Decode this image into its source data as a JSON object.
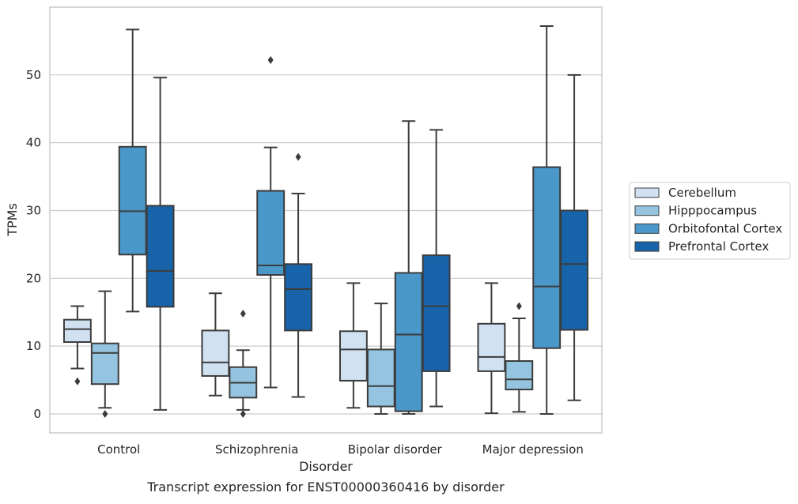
{
  "caption": "Transcript expression for ENST00000360416 by disorder",
  "chart_data": {
    "type": "box",
    "xlabel": "Disorder",
    "ylabel": "TPMs",
    "ylim": [
      -2.8,
      60
    ],
    "y_ticks": [
      0,
      10,
      20,
      30,
      40,
      50
    ],
    "grid": "horizontal",
    "legend_position": "right",
    "categories": [
      "Control",
      "Schizophrenia",
      "Bipolar disorder",
      "Major depression"
    ],
    "series": [
      {
        "name": "Cerebellum",
        "color": "#d0e1f2",
        "boxes": [
          {
            "whisker_low": 6.7,
            "q1": 10.6,
            "median": 12.5,
            "q3": 13.9,
            "whisker_high": 15.9,
            "outliers": [
              4.8
            ]
          },
          {
            "whisker_low": 2.7,
            "q1": 5.6,
            "median": 7.6,
            "q3": 12.3,
            "whisker_high": 17.8,
            "outliers": []
          },
          {
            "whisker_low": 0.9,
            "q1": 4.9,
            "median": 9.5,
            "q3": 12.2,
            "whisker_high": 19.3,
            "outliers": []
          },
          {
            "whisker_low": 0.1,
            "q1": 6.3,
            "median": 8.4,
            "q3": 13.3,
            "whisker_high": 19.3,
            "outliers": []
          }
        ]
      },
      {
        "name": "Hipppocampus",
        "color": "#94c4df",
        "boxes": [
          {
            "whisker_low": 0.9,
            "q1": 4.4,
            "median": 9.0,
            "q3": 10.4,
            "whisker_high": 18.1,
            "outliers": [
              0.0
            ]
          },
          {
            "whisker_low": 0.6,
            "q1": 2.4,
            "median": 4.6,
            "q3": 6.9,
            "whisker_high": 9.4,
            "outliers": [
              14.8,
              0.0
            ]
          },
          {
            "whisker_low": 0.0,
            "q1": 1.1,
            "median": 4.1,
            "q3": 9.5,
            "whisker_high": 16.3,
            "outliers": []
          },
          {
            "whisker_low": 0.3,
            "q1": 3.6,
            "median": 5.1,
            "q3": 7.8,
            "whisker_high": 14.1,
            "outliers": [
              15.9
            ]
          }
        ]
      },
      {
        "name": "Orbitofontal Cortex",
        "color": "#4a98c9",
        "boxes": [
          {
            "whisker_low": 15.1,
            "q1": 23.5,
            "median": 29.9,
            "q3": 39.4,
            "whisker_high": 56.7,
            "outliers": []
          },
          {
            "whisker_low": 3.9,
            "q1": 20.5,
            "median": 21.9,
            "q3": 32.9,
            "whisker_high": 39.3,
            "outliers": [
              52.2
            ]
          },
          {
            "whisker_low": 0.0,
            "q1": 0.4,
            "median": 11.7,
            "q3": 20.8,
            "whisker_high": 43.2,
            "outliers": []
          },
          {
            "whisker_low": 0.0,
            "q1": 9.7,
            "median": 18.8,
            "q3": 36.4,
            "whisker_high": 57.2,
            "outliers": []
          }
        ]
      },
      {
        "name": "Prefrontal Cortex",
        "color": "#1764ab",
        "boxes": [
          {
            "whisker_low": 0.6,
            "q1": 15.8,
            "median": 21.1,
            "q3": 30.7,
            "whisker_high": 49.6,
            "outliers": []
          },
          {
            "whisker_low": 2.5,
            "q1": 12.3,
            "median": 18.4,
            "q3": 22.1,
            "whisker_high": 32.5,
            "outliers": [
              37.9
            ]
          },
          {
            "whisker_low": 1.1,
            "q1": 6.3,
            "median": 15.9,
            "q3": 23.4,
            "whisker_high": 41.9,
            "outliers": []
          },
          {
            "whisker_low": 2.0,
            "q1": 12.4,
            "median": 22.1,
            "q3": 30.0,
            "whisker_high": 50.0,
            "outliers": []
          }
        ]
      }
    ]
  }
}
